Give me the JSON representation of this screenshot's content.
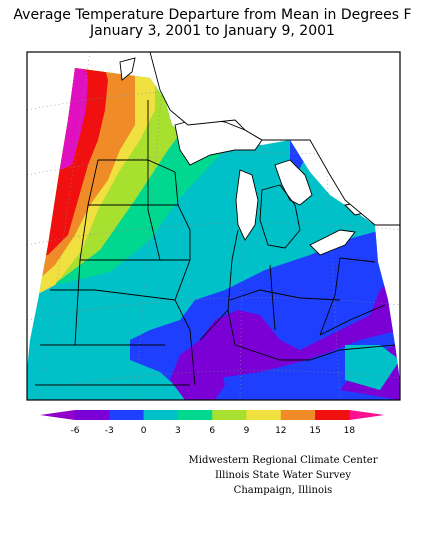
{
  "title": {
    "line1": "Average Temperature Departure from Mean in Degrees F",
    "line2": "January 3, 2001  to  January 9, 2001"
  },
  "legend": {
    "ticks": [
      "-6",
      "-3",
      "0",
      "3",
      "6",
      "9",
      "12",
      "15",
      "18"
    ],
    "colors": [
      "#7b00d6",
      "#1f3fff",
      "#00c0c8",
      "#00d890",
      "#a8e030",
      "#f0e040",
      "#f08c28",
      "#f01010"
    ],
    "low_arrow_color": "#9000c8",
    "high_arrow_color": "#ff1090"
  },
  "credits": {
    "line1": "Midwestern Regional Climate Center",
    "line2": "Illinois State Water Survey",
    "line3": "Champaign, Illinois"
  }
}
